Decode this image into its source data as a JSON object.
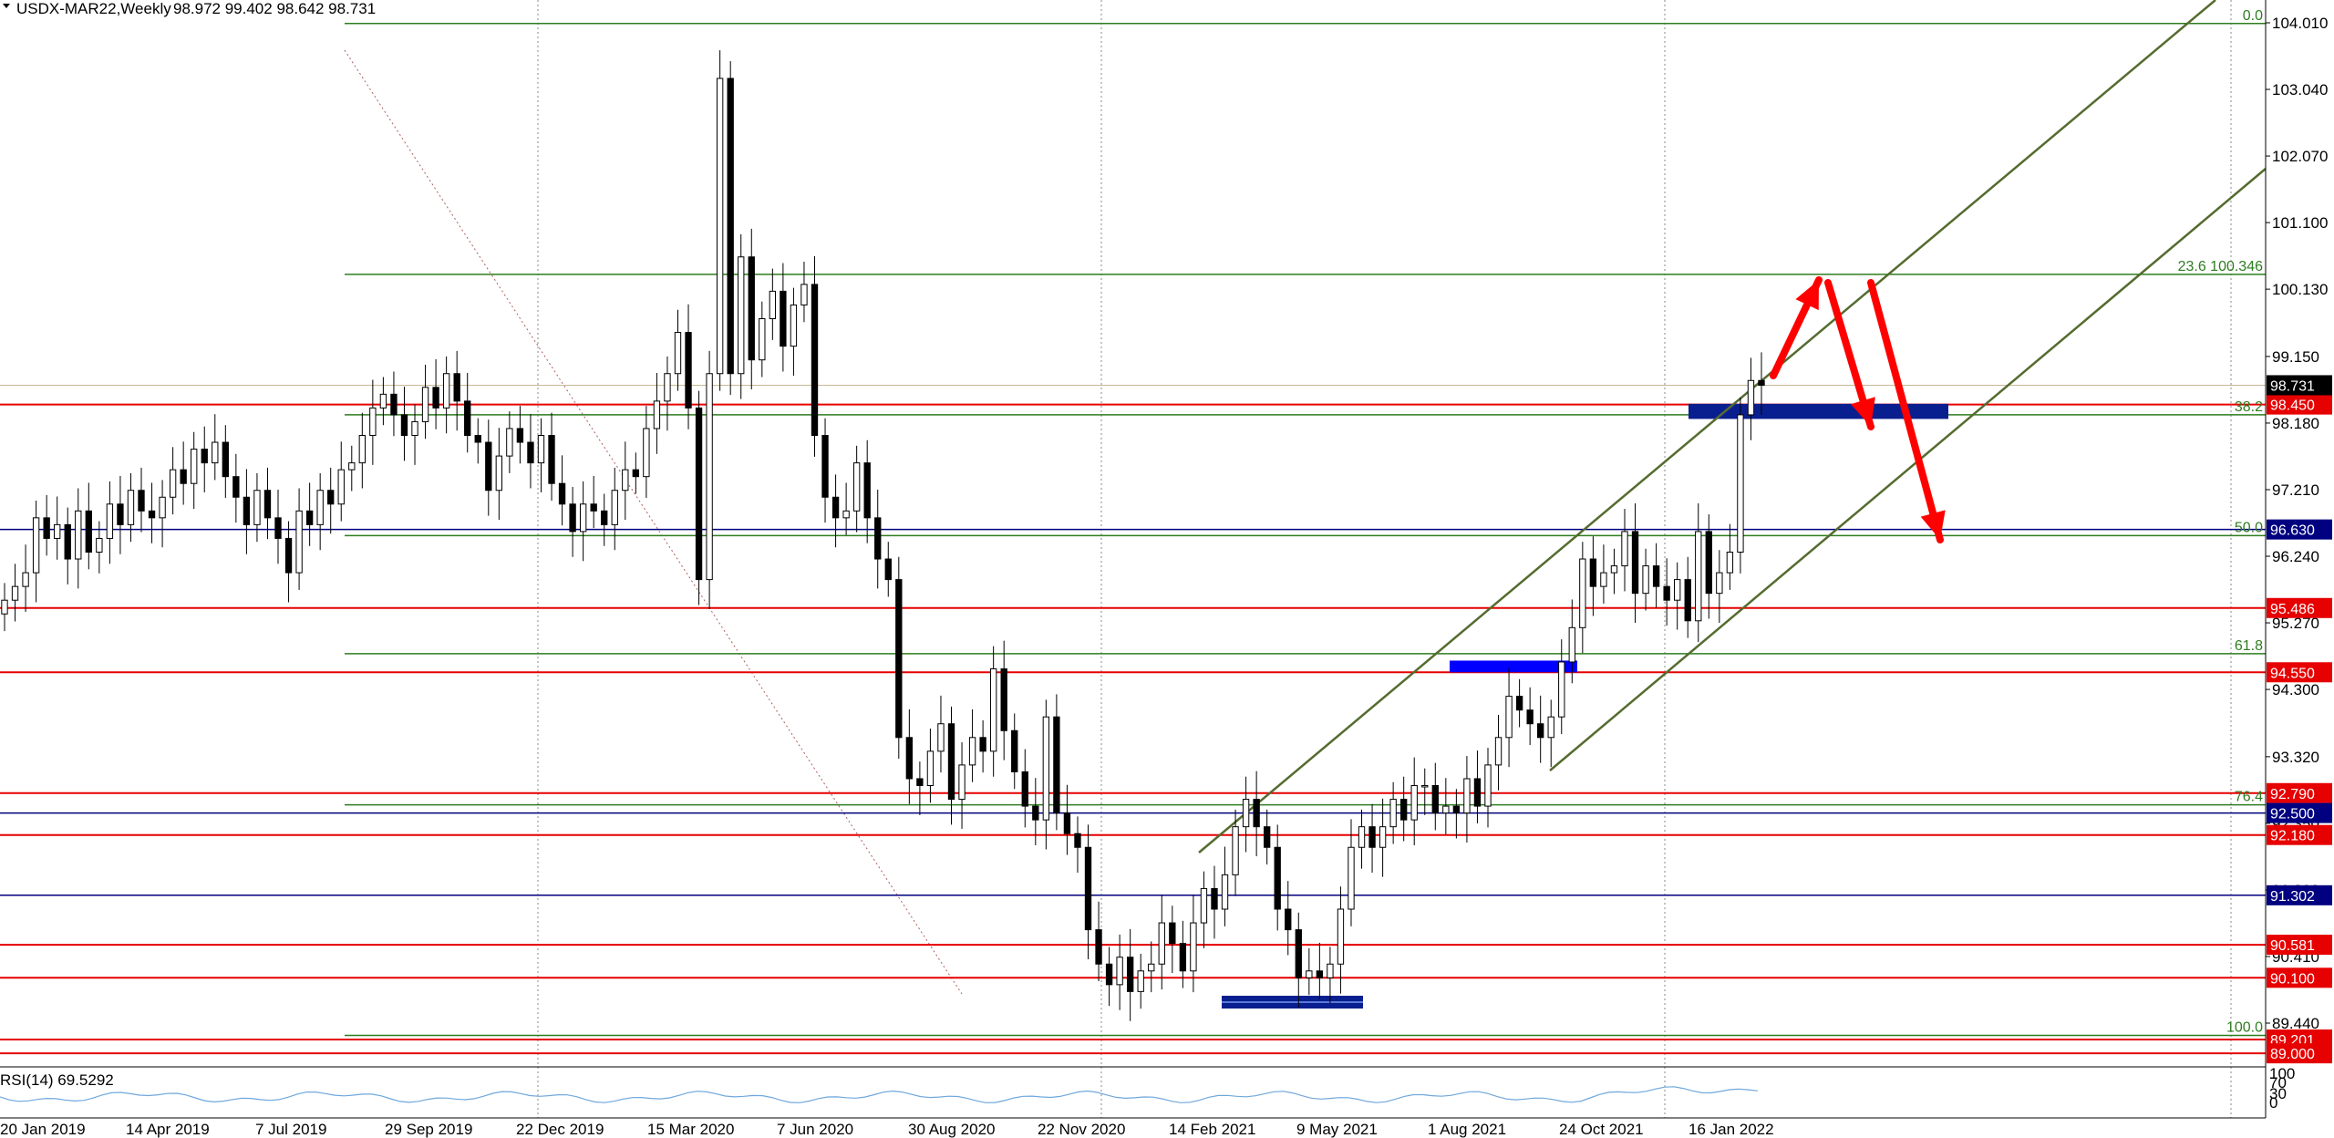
{
  "header": {
    "symbol": "USDX-MAR22,Weekly",
    "ohlc": "98.972 99.402 98.642 98.731"
  },
  "rsi": {
    "label": "RSI(14) 69.5292",
    "levels": [
      "100",
      "70",
      "30",
      "0"
    ]
  },
  "colors": {
    "background": "#ffffff",
    "grid": "#888888",
    "candle_up": "#ffffff",
    "candle_down": "#000000",
    "red_line": "#e60000",
    "green_line": "#2e7d1f",
    "navy_line": "#000080",
    "channel": "#556b2f",
    "zone_blue": "#0000ff",
    "zone_navy": "#0a1f8f",
    "arrow": "#ff0000",
    "rsi_line": "#6fa8dc"
  },
  "price_axis": {
    "ticks": [
      "104.010",
      "103.040",
      "102.070",
      "101.100",
      "100.130",
      "99.150",
      "98.180",
      "97.210",
      "96.240",
      "95.270",
      "94.300",
      "93.320",
      "92.350",
      "91.380",
      "90.410",
      "89.440"
    ]
  },
  "time_axis": {
    "labels": [
      "20 Jan 2019",
      "14 Apr 2019",
      "7 Jul 2019",
      "29 Sep 2019",
      "22 Dec 2019",
      "15 Mar 2020",
      "7 Jun 2020",
      "30 Aug 2020",
      "22 Nov 2020",
      "14 Feb 2021",
      "9 May 2021",
      "1 Aug 2021",
      "24 Oct 2021",
      "16 Jan 2022"
    ]
  },
  "horizontal_levels": {
    "red": [
      {
        "price": 98.45,
        "tag": "98.450",
        "tag_bg": "#e60000"
      },
      {
        "price": 95.486,
        "tag": "95.486",
        "tag_bg": "#e60000"
      },
      {
        "price": 94.55,
        "tag": "94.550",
        "tag_bg": "#e60000"
      },
      {
        "price": 92.79,
        "tag": "92.790",
        "tag_bg": "#e60000"
      },
      {
        "price": 92.18,
        "tag": "92.180",
        "tag_bg": "#e60000"
      },
      {
        "price": 90.581,
        "tag": "90.581",
        "tag_bg": "#e60000"
      },
      {
        "price": 90.1,
        "tag": "90.100",
        "tag_bg": "#e60000"
      },
      {
        "price": 89.201,
        "tag": "89.201",
        "tag_bg": "#e60000"
      },
      {
        "price": 89.0,
        "tag": "89.000",
        "tag_bg": "#e60000"
      }
    ],
    "navy": [
      {
        "price": 96.63,
        "tag": "96.630",
        "tag_bg": "#000080"
      },
      {
        "price": 92.5,
        "tag": "92.500",
        "tag_bg": "#000080"
      },
      {
        "price": 91.302,
        "tag": "91.302",
        "tag_bg": "#000080"
      }
    ],
    "current": {
      "price": 98.731,
      "tag": "98.731",
      "tag_bg": "#000000"
    }
  },
  "fibonacci": {
    "levels": [
      {
        "ratio": "0.0",
        "price": 104.0
      },
      {
        "ratio": "23.6 100.346",
        "price": 100.346
      },
      {
        "ratio": "38.2",
        "price": 98.3
      },
      {
        "ratio": "50.0",
        "price": 96.54
      },
      {
        "ratio": "61.8",
        "price": 94.82
      },
      {
        "ratio": "76.4",
        "price": 92.62
      },
      {
        "ratio": "100.0",
        "price": 89.26
      }
    ]
  },
  "chart_data": {
    "type": "candlestick",
    "title": "USDX-MAR22,Weekly",
    "ylim": [
      89.0,
      104.5
    ],
    "x_categories": [
      "20 Jan 2019",
      "14 Apr 2019",
      "7 Jul 2019",
      "29 Sep 2019",
      "22 Dec 2019",
      "15 Mar 2020",
      "7 Jun 2020",
      "30 Aug 2020",
      "22 Nov 2020",
      "14 Feb 2021",
      "9 May 2021",
      "1 Aug 2021",
      "24 Oct 2021",
      "16 Jan 2022"
    ],
    "closes": [
      95.6,
      95.8,
      96.0,
      96.8,
      96.5,
      96.7,
      96.2,
      96.9,
      96.3,
      96.5,
      97.0,
      96.7,
      97.2,
      96.9,
      96.8,
      97.1,
      97.5,
      97.3,
      97.8,
      97.6,
      97.9,
      97.4,
      97.1,
      96.7,
      97.2,
      96.8,
      96.5,
      96.0,
      96.9,
      96.7,
      97.2,
      97.0,
      97.5,
      97.6,
      98.0,
      98.4,
      98.6,
      98.3,
      98.0,
      98.2,
      98.7,
      98.4,
      98.9,
      98.5,
      98.0,
      97.9,
      97.2,
      97.7,
      98.1,
      97.9,
      97.6,
      98.0,
      97.3,
      97.0,
      96.6,
      97.0,
      96.9,
      96.7,
      97.2,
      97.5,
      97.4,
      98.1,
      98.5,
      98.9,
      99.5,
      98.4,
      95.9,
      98.9,
      103.2,
      98.9,
      100.6,
      99.1,
      99.7,
      100.1,
      99.3,
      99.9,
      100.2,
      98.0,
      97.1,
      96.8,
      96.9,
      97.6,
      96.8,
      96.2,
      95.9,
      93.6,
      93.0,
      92.9,
      93.4,
      93.8,
      92.7,
      93.2,
      93.6,
      93.4,
      94.6,
      93.7,
      93.1,
      92.6,
      92.4,
      93.9,
      92.5,
      92.2,
      92.0,
      90.8,
      90.3,
      90.0,
      90.4,
      89.9,
      90.2,
      90.3,
      90.9,
      90.6,
      90.2,
      90.9,
      91.4,
      91.1,
      91.6,
      92.3,
      92.7,
      92.3,
      92.0,
      91.1,
      90.8,
      90.1,
      90.2,
      90.1,
      90.3,
      91.1,
      92.0,
      92.3,
      92.0,
      92.3,
      92.7,
      92.4,
      92.9,
      92.9,
      92.5,
      92.6,
      92.5,
      93.0,
      92.6,
      93.2,
      93.6,
      94.2,
      94.0,
      93.8,
      93.6,
      93.9,
      94.7,
      95.2,
      96.2,
      95.8,
      96.0,
      96.1,
      96.6,
      95.7,
      96.1,
      95.8,
      95.6,
      95.9,
      95.3,
      96.6,
      95.7,
      96.0,
      96.3,
      98.3,
      98.8,
      98.73
    ],
    "channel": {
      "type": "ascending parallel channel"
    },
    "zones": [
      "98.25-98.45 (navy)",
      "94.55-94.70 (blue)",
      "89.00-89.15 (navy)"
    ],
    "arrows": [
      "up to ~100.4",
      "down to ~98.4",
      "down to ~96.6"
    ]
  }
}
